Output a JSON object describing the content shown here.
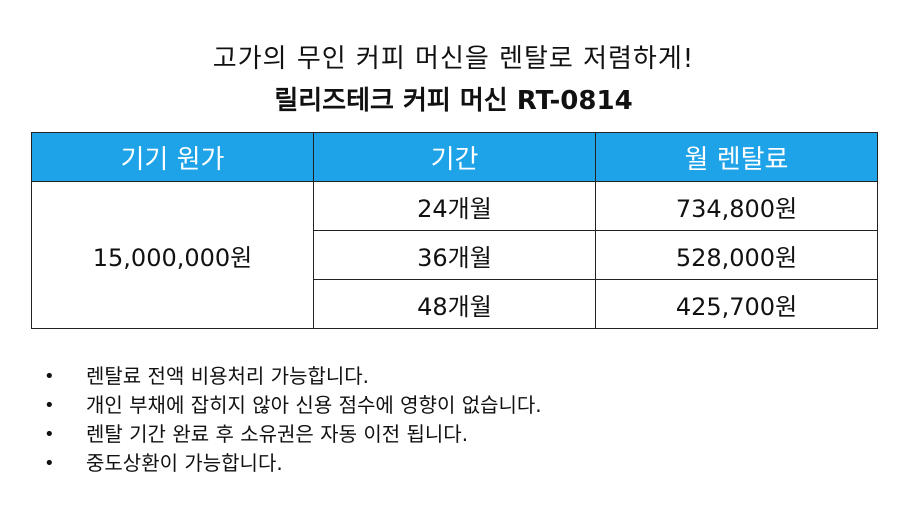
{
  "heading": {
    "subtitle": "고가의 무인 커피 머신을 렌탈로 저렴하게!",
    "title": "릴리즈테크 커피 머신 RT-0814"
  },
  "table": {
    "headers": [
      "기기 원가",
      "기간",
      "월 렌탈료"
    ],
    "device_price": "15,000,000원",
    "rows": [
      {
        "period": "24개월",
        "monthly_fee": "734,800원"
      },
      {
        "period": "36개월",
        "monthly_fee": "528,000원"
      },
      {
        "period": "48개월",
        "monthly_fee": "425,700원"
      }
    ],
    "header_color": "#1fa3e8"
  },
  "notes": {
    "bullet": "•",
    "items": [
      "렌탈료 전액 비용처리 가능합니다.",
      "개인 부채에 잡히지 않아 신용 점수에 영향이 없습니다.",
      "렌탈 기간 완료 후 소유권은 자동 이전 됩니다.",
      "중도상환이 가능합니다."
    ]
  }
}
